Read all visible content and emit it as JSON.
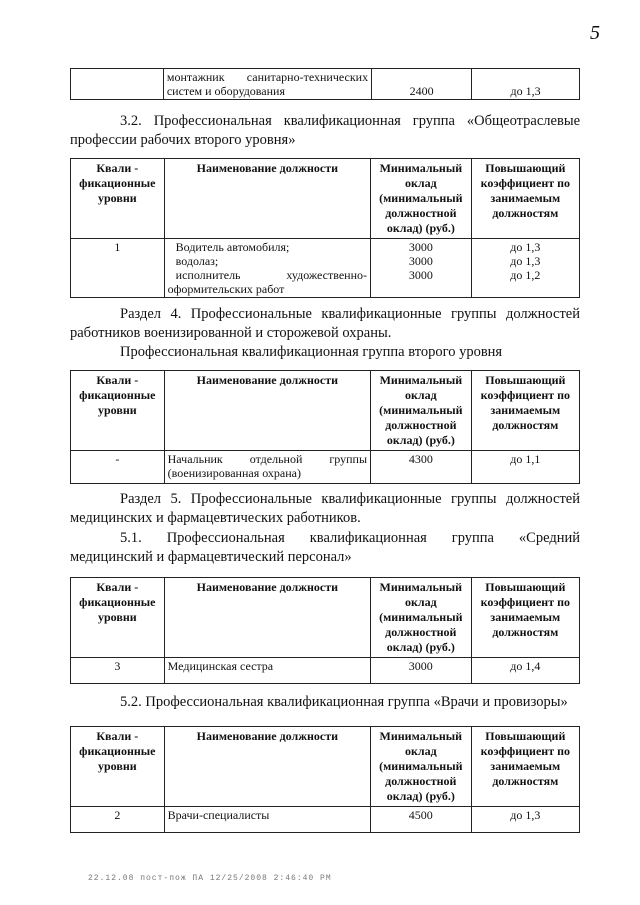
{
  "page_number": "5",
  "table0": {
    "rows": [
      {
        "level": "",
        "name_lines": [
          "монтажник санитарно-технических",
          "систем и оборудования"
        ],
        "salary": "2400",
        "coef": "до 1,3"
      }
    ]
  },
  "headers": {
    "level": "Квали - фикационные уровни",
    "name": "Наименование должности",
    "salary": "Минимальный оклад (минимальный должностной оклад) (руб.)",
    "coef": "Повышающий коэффициент по занимаемым должностям"
  },
  "section32": "3.2. Профессиональная квалификационная группа «Общеотраслевые профессии рабочих второго уровня»",
  "table1": {
    "level": "1",
    "names": [
      "Водитель автомобиля;",
      "водолаз;",
      "исполнитель художественно-",
      "оформительских работ"
    ],
    "salaries": [
      "3000",
      "3000",
      "3000"
    ],
    "coefs": [
      "до 1,3",
      "до 1,3",
      "до 1,2"
    ]
  },
  "section4": "Раздел 4. Профессиональные квалификационные группы должностей работников военизированной и сторожевой охраны.",
  "section4_sub": "Профессиональная квалификационная группа второго уровня",
  "table2": {
    "level": "-",
    "name_lines": [
      "Начальник отдельной группы",
      "(военизированная охрана)"
    ],
    "salary": "4300",
    "coef": "до 1,1"
  },
  "section5": "Раздел 5. Профессиональные квалификационные группы должностей медицинских и фармацевтических работников.",
  "section51": "5.1. Профессиональная квалификационная группа «Средний медицинский и фармацевтический персонал»",
  "table3": {
    "level": "3",
    "name": "Медицинская сестра",
    "salary": "3000",
    "coef": "до 1,4"
  },
  "section52": "5.2. Профессиональная квалификационная группа «Врачи и провизоры»",
  "table4": {
    "level": "2",
    "name": "Врачи-специалисты",
    "salary": "4500",
    "coef": "до 1,3"
  },
  "footer": "22.12.08 пост-пож ПА 12/25/2008 2:46:40 PM"
}
